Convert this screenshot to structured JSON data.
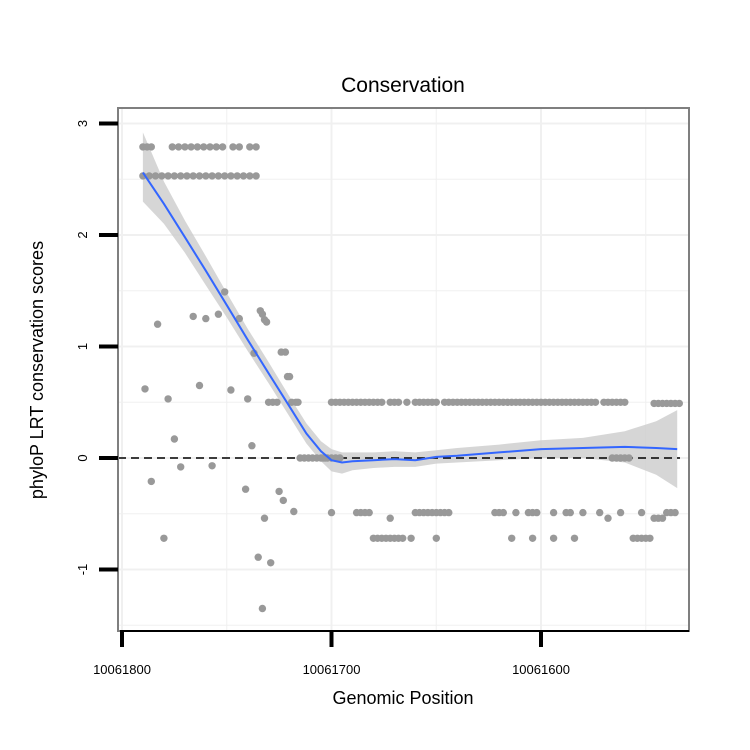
{
  "chart_data": {
    "type": "scatter",
    "title": "Conservation",
    "xlabel": "Genomic Position",
    "ylabel": "phyloP LRT conservation scores",
    "x_reversed": true,
    "xlim": [
      10061800,
      10061528
    ],
    "ylim": [
      -1.5,
      3.1
    ],
    "x_ticks": [
      10061800,
      10061700,
      10061600
    ],
    "x_tick_labels": [
      "10061800",
      "10061700",
      "10061600"
    ],
    "y_ticks": [
      -1,
      0,
      1,
      2,
      3
    ],
    "y_tick_labels": [
      "-1",
      "0",
      "1",
      "2",
      "3"
    ],
    "grid": true,
    "reference_line": {
      "y": 0,
      "style": "dashed"
    },
    "colors": {
      "points": "#999999",
      "smooth": "#3366FF",
      "ribbon": "#cccccc",
      "grid": "#f0f0f0",
      "border": "#7f7f7f"
    },
    "series": [
      {
        "name": "scores",
        "points": [
          [
            10061790,
            2.79
          ],
          [
            10061788,
            2.79
          ],
          [
            10061786,
            2.79
          ],
          [
            10061790,
            2.53
          ],
          [
            10061787,
            2.53
          ],
          [
            10061784,
            2.53
          ],
          [
            10061781,
            2.53
          ],
          [
            10061778,
            2.53
          ],
          [
            10061775,
            2.53
          ],
          [
            10061772,
            2.53
          ],
          [
            10061769,
            2.53
          ],
          [
            10061766,
            2.53
          ],
          [
            10061763,
            2.53
          ],
          [
            10061760,
            2.53
          ],
          [
            10061757,
            2.53
          ],
          [
            10061754,
            2.53
          ],
          [
            10061751,
            2.53
          ],
          [
            10061748,
            2.53
          ],
          [
            10061745,
            2.53
          ],
          [
            10061742,
            2.53
          ],
          [
            10061739,
            2.53
          ],
          [
            10061736,
            2.53
          ],
          [
            10061776,
            2.79
          ],
          [
            10061773,
            2.79
          ],
          [
            10061770,
            2.79
          ],
          [
            10061767,
            2.79
          ],
          [
            10061764,
            2.79
          ],
          [
            10061761,
            2.79
          ],
          [
            10061758,
            2.79
          ],
          [
            10061755,
            2.79
          ],
          [
            10061752,
            2.79
          ],
          [
            10061747,
            2.79
          ],
          [
            10061744,
            2.79
          ],
          [
            10061739,
            2.79
          ],
          [
            10061736,
            2.79
          ],
          [
            10061789,
            0.62
          ],
          [
            10061786,
            -0.21
          ],
          [
            10061783,
            1.2
          ],
          [
            10061780,
            -0.72
          ],
          [
            10061778,
            0.53
          ],
          [
            10061775,
            0.17
          ],
          [
            10061772,
            -0.08
          ],
          [
            10061766,
            1.27
          ],
          [
            10061763,
            0.65
          ],
          [
            10061760,
            1.25
          ],
          [
            10061757,
            -0.07
          ],
          [
            10061754,
            1.29
          ],
          [
            10061751,
            1.49
          ],
          [
            10061748,
            0.61
          ],
          [
            10061744,
            1.25
          ],
          [
            10061741,
            -0.28
          ],
          [
            10061740,
            0.53
          ],
          [
            10061738,
            0.11
          ],
          [
            10061737,
            0.94
          ],
          [
            10061735,
            -0.89
          ],
          [
            10061734,
            1.32
          ],
          [
            10061733,
            -1.35
          ],
          [
            10061733,
            1.29
          ],
          [
            10061732,
            1.24
          ],
          [
            10061732,
            -0.54
          ],
          [
            10061731,
            1.22
          ],
          [
            10061730,
            0.5
          ],
          [
            10061729,
            -0.94
          ],
          [
            10061728,
            0.5
          ],
          [
            10061726,
            0.5
          ],
          [
            10061725,
            -0.3
          ],
          [
            10061724,
            0.95
          ],
          [
            10061723,
            -0.38
          ],
          [
            10061722,
            0.95
          ],
          [
            10061721,
            0.73
          ],
          [
            10061720,
            0.73
          ],
          [
            10061719,
            0.5
          ],
          [
            10061718,
            -0.48
          ],
          [
            10061717,
            0.5
          ],
          [
            10061716,
            0.5
          ],
          [
            10061715,
            0.0
          ],
          [
            10061713,
            0.0
          ],
          [
            10061711,
            0.0
          ],
          [
            10061709,
            0.0
          ],
          [
            10061707,
            0.0
          ],
          [
            10061705,
            0.0
          ],
          [
            10061703,
            0.0
          ],
          [
            10061700,
            0.5
          ],
          [
            10061698,
            0.5
          ],
          [
            10061696,
            0.5
          ],
          [
            10061694,
            0.5
          ],
          [
            10061692,
            0.5
          ],
          [
            10061690,
            0.5
          ],
          [
            10061688,
            0.5
          ],
          [
            10061686,
            0.5
          ],
          [
            10061684,
            0.5
          ],
          [
            10061682,
            0.5
          ],
          [
            10061680,
            0.5
          ],
          [
            10061678,
            0.5
          ],
          [
            10061676,
            0.5
          ],
          [
            10061672,
            0.5
          ],
          [
            10061670,
            0.5
          ],
          [
            10061668,
            0.5
          ],
          [
            10061664,
            0.5
          ],
          [
            10061660,
            0.5
          ],
          [
            10061658,
            0.5
          ],
          [
            10061656,
            0.5
          ],
          [
            10061654,
            0.5
          ],
          [
            10061652,
            0.5
          ],
          [
            10061650,
            0.5
          ],
          [
            10061646,
            0.5
          ],
          [
            10061644,
            0.5
          ],
          [
            10061642,
            0.5
          ],
          [
            10061640,
            0.5
          ],
          [
            10061638,
            0.5
          ],
          [
            10061636,
            0.5
          ],
          [
            10061634,
            0.5
          ],
          [
            10061632,
            0.5
          ],
          [
            10061630,
            0.5
          ],
          [
            10061628,
            0.5
          ],
          [
            10061626,
            0.5
          ],
          [
            10061624,
            0.5
          ],
          [
            10061622,
            0.5
          ],
          [
            10061620,
            0.5
          ],
          [
            10061618,
            0.5
          ],
          [
            10061616,
            0.5
          ],
          [
            10061614,
            0.5
          ],
          [
            10061612,
            0.5
          ],
          [
            10061610,
            0.5
          ],
          [
            10061608,
            0.5
          ],
          [
            10061606,
            0.5
          ],
          [
            10061604,
            0.5
          ],
          [
            10061602,
            0.5
          ],
          [
            10061600,
            0.5
          ],
          [
            10061598,
            0.5
          ],
          [
            10061596,
            0.5
          ],
          [
            10061594,
            0.5
          ],
          [
            10061592,
            0.5
          ],
          [
            10061590,
            0.5
          ],
          [
            10061588,
            0.5
          ],
          [
            10061586,
            0.5
          ],
          [
            10061584,
            0.5
          ],
          [
            10061582,
            0.5
          ],
          [
            10061580,
            0.5
          ],
          [
            10061578,
            0.5
          ],
          [
            10061576,
            0.5
          ],
          [
            10061574,
            0.5
          ],
          [
            10061570,
            0.5
          ],
          [
            10061568,
            0.5
          ],
          [
            10061566,
            0.5
          ],
          [
            10061564,
            0.5
          ],
          [
            10061562,
            0.5
          ],
          [
            10061560,
            0.5
          ],
          [
            10061546,
            0.49
          ],
          [
            10061544,
            0.49
          ],
          [
            10061542,
            0.49
          ],
          [
            10061540,
            0.49
          ],
          [
            10061538,
            0.49
          ],
          [
            10061536,
            0.49
          ],
          [
            10061534,
            0.49
          ],
          [
            10061704,
            0.0
          ],
          [
            10061702,
            0.0
          ],
          [
            10061700,
            0.0
          ],
          [
            10061698,
            0.0
          ],
          [
            10061696,
            0.0
          ],
          [
            10061566,
            0.0
          ],
          [
            10061564,
            0.0
          ],
          [
            10061562,
            0.0
          ],
          [
            10061560,
            0.0
          ],
          [
            10061558,
            0.0
          ],
          [
            10061700,
            -0.49
          ],
          [
            10061688,
            -0.49
          ],
          [
            10061686,
            -0.49
          ],
          [
            10061684,
            -0.49
          ],
          [
            10061682,
            -0.49
          ],
          [
            10061672,
            -0.54
          ],
          [
            10061660,
            -0.49
          ],
          [
            10061658,
            -0.49
          ],
          [
            10061656,
            -0.49
          ],
          [
            10061654,
            -0.49
          ],
          [
            10061652,
            -0.49
          ],
          [
            10061650,
            -0.49
          ],
          [
            10061648,
            -0.49
          ],
          [
            10061646,
            -0.49
          ],
          [
            10061644,
            -0.49
          ],
          [
            10061622,
            -0.49
          ],
          [
            10061620,
            -0.49
          ],
          [
            10061618,
            -0.49
          ],
          [
            10061612,
            -0.49
          ],
          [
            10061606,
            -0.49
          ],
          [
            10061604,
            -0.49
          ],
          [
            10061602,
            -0.49
          ],
          [
            10061594,
            -0.49
          ],
          [
            10061588,
            -0.49
          ],
          [
            10061586,
            -0.49
          ],
          [
            10061580,
            -0.49
          ],
          [
            10061572,
            -0.49
          ],
          [
            10061568,
            -0.54
          ],
          [
            10061562,
            -0.49
          ],
          [
            10061552,
            -0.49
          ],
          [
            10061546,
            -0.54
          ],
          [
            10061544,
            -0.54
          ],
          [
            10061542,
            -0.54
          ],
          [
            10061540,
            -0.49
          ],
          [
            10061538,
            -0.49
          ],
          [
            10061536,
            -0.49
          ],
          [
            10061680,
            -0.72
          ],
          [
            10061678,
            -0.72
          ],
          [
            10061676,
            -0.72
          ],
          [
            10061674,
            -0.72
          ],
          [
            10061672,
            -0.72
          ],
          [
            10061670,
            -0.72
          ],
          [
            10061668,
            -0.72
          ],
          [
            10061666,
            -0.72
          ],
          [
            10061662,
            -0.72
          ],
          [
            10061650,
            -0.72
          ],
          [
            10061614,
            -0.72
          ],
          [
            10061604,
            -0.72
          ],
          [
            10061594,
            -0.72
          ],
          [
            10061584,
            -0.72
          ],
          [
            10061556,
            -0.72
          ],
          [
            10061554,
            -0.72
          ],
          [
            10061552,
            -0.72
          ],
          [
            10061550,
            -0.72
          ],
          [
            10061548,
            -0.72
          ]
        ]
      }
    ],
    "smooth": {
      "x": [
        10061790,
        10061780,
        10061770,
        10061760,
        10061750,
        10061740,
        10061730,
        10061720,
        10061712,
        10061705,
        10061700,
        10061695,
        10061690,
        10061680,
        10061670,
        10061660,
        10061650,
        10061640,
        10061620,
        10061600,
        10061580,
        10061560,
        10061545,
        10061535
      ],
      "y": [
        2.56,
        2.28,
        1.98,
        1.68,
        1.37,
        1.06,
        0.76,
        0.46,
        0.22,
        0.06,
        -0.02,
        -0.04,
        -0.03,
        -0.02,
        -0.01,
        -0.02,
        0.01,
        0.02,
        0.05,
        0.08,
        0.09,
        0.1,
        0.09,
        0.08
      ],
      "lower": [
        2.3,
        2.1,
        1.84,
        1.55,
        1.26,
        0.96,
        0.67,
        0.37,
        0.13,
        -0.03,
        -0.12,
        -0.14,
        -0.11,
        -0.09,
        -0.08,
        -0.08,
        -0.05,
        -0.04,
        -0.02,
        0.0,
        0.0,
        -0.04,
        -0.15,
        -0.27
      ],
      "upper": [
        2.92,
        2.48,
        2.13,
        1.81,
        1.48,
        1.16,
        0.86,
        0.55,
        0.31,
        0.15,
        0.08,
        0.05,
        0.05,
        0.05,
        0.06,
        0.05,
        0.07,
        0.09,
        0.12,
        0.16,
        0.18,
        0.24,
        0.33,
        0.43
      ]
    }
  }
}
